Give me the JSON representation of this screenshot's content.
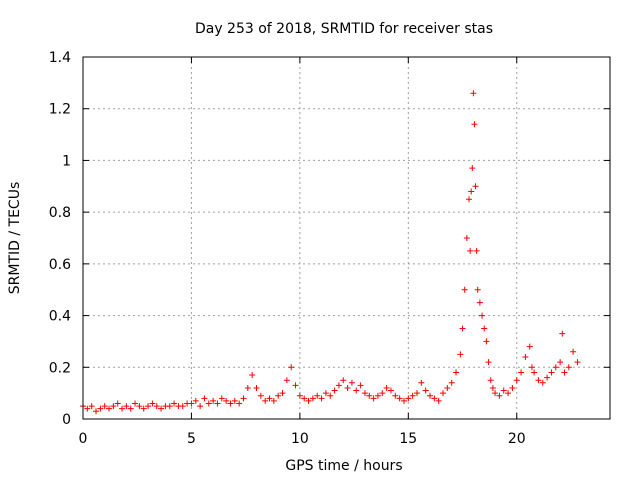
{
  "chart_data": {
    "type": "scatter",
    "title": "Day 253 of 2018, SRMTID for receiver stas",
    "xlabel": "GPS time / hours",
    "ylabel": "SRMTID / TECUs",
    "xlim": [
      0,
      24.3
    ],
    "ylim": [
      0,
      1.4
    ],
    "xticks": [
      0,
      5,
      10,
      15,
      20
    ],
    "xtick_labels": [
      "0",
      "5",
      "10",
      "15",
      "20"
    ],
    "yticks": [
      0,
      0.2,
      0.4,
      0.6,
      0.8,
      1,
      1.2,
      1.4
    ],
    "ytick_labels": [
      "0",
      "0.2",
      "0.4",
      "0.6",
      "0.8",
      "1",
      "1.2",
      "1.4"
    ],
    "grid": true,
    "marker": "+",
    "color": "#ff0000",
    "series": [
      {
        "name": "SRMTID",
        "x": [
          0.0,
          0.2,
          0.4,
          0.6,
          0.8,
          1.0,
          1.2,
          1.4,
          1.6,
          1.8,
          2.0,
          2.2,
          2.4,
          2.6,
          2.8,
          3.0,
          3.2,
          3.4,
          3.6,
          3.8,
          4.0,
          4.2,
          4.4,
          4.6,
          4.8,
          5.0,
          5.2,
          5.4,
          5.6,
          5.8,
          6.0,
          6.2,
          6.4,
          6.6,
          6.8,
          7.0,
          7.2,
          7.4,
          7.6,
          7.8,
          8.0,
          8.2,
          8.4,
          8.6,
          8.8,
          9.0,
          9.2,
          9.4,
          9.6,
          9.8,
          10.0,
          10.2,
          10.4,
          10.6,
          10.8,
          11.0,
          11.2,
          11.4,
          11.6,
          11.8,
          12.0,
          12.2,
          12.4,
          12.6,
          12.8,
          13.0,
          13.2,
          13.4,
          13.6,
          13.8,
          14.0,
          14.2,
          14.4,
          14.6,
          14.8,
          15.0,
          15.2,
          15.4,
          15.6,
          15.8,
          16.0,
          16.2,
          16.4,
          16.6,
          16.8,
          17.0,
          17.2,
          17.4,
          17.5,
          17.6,
          17.7,
          17.8,
          17.85,
          17.9,
          17.95,
          18.0,
          18.05,
          18.1,
          18.15,
          18.2,
          18.3,
          18.4,
          18.5,
          18.6,
          18.7,
          18.8,
          18.9,
          19.0,
          19.2,
          19.4,
          19.6,
          19.8,
          20.0,
          20.2,
          20.4,
          20.6,
          20.7,
          20.8,
          21.0,
          21.2,
          21.4,
          21.6,
          21.8,
          22.0,
          22.1,
          22.2,
          22.4,
          22.6,
          22.8
        ],
        "y": [
          0.05,
          0.04,
          0.05,
          0.03,
          0.04,
          0.05,
          0.04,
          0.05,
          0.06,
          0.04,
          0.05,
          0.04,
          0.06,
          0.05,
          0.04,
          0.05,
          0.06,
          0.05,
          0.04,
          0.05,
          0.05,
          0.06,
          0.05,
          0.05,
          0.06,
          0.06,
          0.07,
          0.05,
          0.08,
          0.06,
          0.07,
          0.06,
          0.08,
          0.07,
          0.06,
          0.07,
          0.06,
          0.08,
          0.12,
          0.17,
          0.12,
          0.09,
          0.07,
          0.08,
          0.07,
          0.09,
          0.1,
          0.15,
          0.2,
          0.13,
          0.09,
          0.08,
          0.07,
          0.08,
          0.09,
          0.08,
          0.1,
          0.09,
          0.11,
          0.13,
          0.15,
          0.12,
          0.14,
          0.11,
          0.13,
          0.1,
          0.09,
          0.08,
          0.09,
          0.1,
          0.12,
          0.11,
          0.09,
          0.08,
          0.07,
          0.08,
          0.09,
          0.1,
          0.14,
          0.11,
          0.09,
          0.08,
          0.07,
          0.1,
          0.12,
          0.14,
          0.18,
          0.25,
          0.35,
          0.5,
          0.7,
          0.85,
          0.65,
          0.88,
          0.97,
          1.26,
          1.14,
          0.9,
          0.65,
          0.5,
          0.45,
          0.4,
          0.35,
          0.3,
          0.22,
          0.15,
          0.12,
          0.1,
          0.09,
          0.11,
          0.1,
          0.12,
          0.15,
          0.18,
          0.24,
          0.28,
          0.2,
          0.18,
          0.15,
          0.14,
          0.16,
          0.18,
          0.2,
          0.22,
          0.33,
          0.18,
          0.2,
          0.26,
          0.22
        ]
      }
    ]
  }
}
